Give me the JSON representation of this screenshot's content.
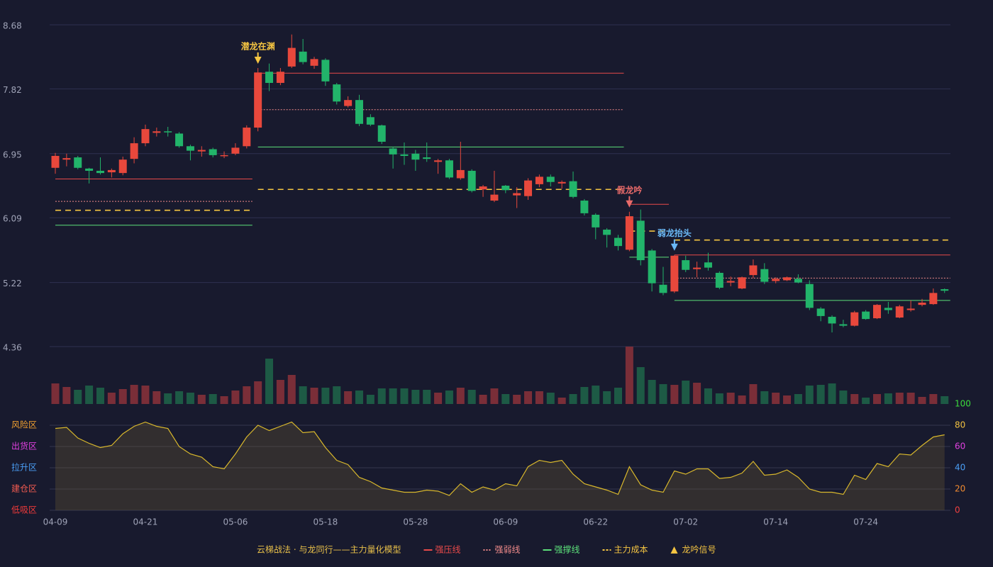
{
  "chart_data": [
    {
      "type": "candlestick",
      "ylim": [
        4.36,
        8.68
      ],
      "yticks": [
        4.36,
        5.22,
        6.09,
        6.95,
        7.82,
        8.68
      ],
      "grid": true,
      "up_color": "#e8483c",
      "down_color": "#22b46a",
      "open": [
        6.76,
        6.87,
        6.9,
        6.75,
        6.72,
        6.7,
        6.69,
        6.88,
        7.09,
        7.23,
        7.25,
        7.22,
        7.05,
        6.98,
        7.01,
        6.92,
        6.95,
        7.05,
        7.3,
        8.05,
        7.9,
        8.12,
        8.32,
        8.13,
        8.21,
        7.88,
        7.59,
        7.67,
        7.44,
        7.33,
        7.02,
        6.94,
        6.95,
        6.9,
        6.84,
        6.86,
        6.62,
        6.72,
        6.47,
        6.32,
        6.52,
        6.39,
        6.38,
        6.54,
        6.64,
        6.55,
        6.58,
        6.32,
        6.13,
        5.93,
        5.82,
        5.66,
        6.05,
        5.65,
        5.19,
        5.1,
        5.52,
        5.4,
        5.49,
        5.35,
        5.22,
        5.14,
        5.32,
        5.4,
        5.24,
        5.25,
        5.27,
        5.2,
        4.87,
        4.76,
        4.66,
        4.64,
        4.83,
        4.74,
        4.88,
        4.75,
        4.85,
        4.92,
        4.93,
        5.13
      ],
      "high": [
        6.96,
        6.95,
        6.92,
        6.76,
        6.9,
        6.75,
        6.91,
        7.17,
        7.34,
        7.3,
        7.31,
        7.24,
        7.07,
        7.05,
        7.03,
        6.98,
        7.09,
        7.33,
        8.1,
        8.16,
        8.1,
        8.55,
        8.49,
        8.25,
        8.23,
        7.9,
        7.72,
        7.74,
        7.48,
        7.34,
        7.04,
        7.1,
        7.0,
        7.1,
        6.88,
        6.88,
        7.11,
        6.74,
        6.53,
        6.72,
        6.53,
        6.5,
        6.62,
        6.67,
        6.67,
        6.59,
        6.71,
        6.34,
        6.15,
        5.95,
        5.86,
        6.17,
        6.2,
        5.67,
        5.43,
        5.59,
        5.58,
        5.5,
        5.62,
        5.37,
        5.3,
        5.3,
        5.53,
        5.48,
        5.29,
        5.3,
        5.33,
        5.25,
        4.89,
        4.78,
        4.72,
        4.84,
        4.85,
        4.93,
        4.96,
        4.92,
        4.98,
        5.0,
        5.14,
        5.14
      ],
      "low": [
        6.68,
        6.78,
        6.74,
        6.55,
        6.67,
        6.63,
        6.66,
        6.82,
        7.05,
        7.18,
        7.18,
        7.03,
        6.86,
        6.91,
        6.9,
        6.89,
        6.93,
        7.02,
        7.25,
        7.79,
        7.87,
        8.1,
        8.15,
        8.09,
        7.86,
        7.61,
        7.57,
        7.32,
        7.32,
        7.08,
        6.75,
        6.8,
        6.72,
        6.84,
        6.68,
        6.61,
        6.6,
        6.43,
        6.37,
        6.3,
        6.42,
        6.22,
        6.33,
        6.5,
        6.51,
        6.48,
        6.35,
        6.12,
        5.8,
        5.69,
        5.65,
        5.64,
        5.45,
        5.1,
        5.05,
        5.08,
        5.36,
        5.29,
        5.38,
        5.13,
        5.17,
        5.13,
        5.28,
        5.2,
        5.21,
        5.24,
        5.21,
        4.85,
        4.7,
        4.55,
        4.62,
        4.63,
        4.72,
        4.73,
        4.8,
        4.74,
        4.83,
        4.9,
        4.92,
        5.08
      ],
      "close": [
        6.92,
        6.89,
        6.76,
        6.72,
        6.69,
        6.73,
        6.87,
        7.09,
        7.28,
        7.25,
        7.24,
        7.05,
        6.99,
        7.0,
        6.93,
        6.93,
        7.03,
        7.3,
        8.04,
        7.9,
        8.05,
        8.37,
        8.18,
        8.22,
        7.92,
        7.65,
        7.67,
        7.35,
        7.34,
        7.11,
        6.94,
        6.92,
        6.87,
        6.88,
        6.86,
        6.63,
        6.73,
        6.45,
        6.51,
        6.4,
        6.46,
        6.42,
        6.59,
        6.64,
        6.57,
        6.57,
        6.37,
        6.15,
        5.96,
        5.86,
        5.71,
        6.11,
        5.52,
        5.21,
        5.08,
        5.58,
        5.39,
        5.42,
        5.42,
        5.15,
        5.24,
        5.29,
        5.45,
        5.23,
        5.27,
        5.29,
        5.22,
        4.88,
        4.77,
        4.67,
        4.64,
        4.82,
        4.73,
        4.92,
        4.85,
        4.9,
        4.87,
        4.95,
        5.08,
        5.11
      ],
      "levels": [
        {
          "from": 0,
          "to": 17,
          "resistance": 6.61,
          "pivot": 6.31,
          "cost": 6.19,
          "support": 5.99
        },
        {
          "from": 18,
          "to": 50,
          "resistance": 8.03,
          "pivot": 7.54,
          "cost": 6.47,
          "support": 7.04
        },
        {
          "from": 51,
          "to": 54,
          "resistance": 6.27,
          "cost": 5.91,
          "support": 5.56
        },
        {
          "from": 55,
          "to": 79,
          "resistance": 5.59,
          "pivot": 5.28,
          "cost": 5.79,
          "support": 4.98
        }
      ],
      "signals": [
        {
          "index": 18,
          "label": "潜龙在渊",
          "color": "#f5c542"
        },
        {
          "index": 51,
          "label": "假龙吟",
          "color": "#e86a6a"
        },
        {
          "index": 55,
          "label": "弱龙抬头",
          "color": "#6ab8f5"
        }
      ],
      "legend": {
        "title": "云梯战法 · 与龙同行——主力量化模型",
        "title_color": "#e8c04a",
        "items": [
          {
            "key": "resistance",
            "name": "强压线",
            "color": "#e84a4a"
          },
          {
            "key": "pivot",
            "name": "强弱线",
            "color": "#f08a8a"
          },
          {
            "key": "support",
            "name": "强撑线",
            "color": "#5ce07a"
          },
          {
            "key": "cost",
            "name": "主力成本",
            "color": "#f5c542"
          },
          {
            "key": "signal",
            "name": "龙吟信号",
            "color": "#f5c542"
          }
        ]
      }
    },
    {
      "type": "bar",
      "up_color": "#7a2e38",
      "down_color": "#1d5a45",
      "values": [
        29,
        24,
        20,
        26,
        23,
        16,
        21,
        27,
        26,
        18,
        15,
        18,
        16,
        13,
        14,
        11,
        19,
        25,
        32,
        64,
        34,
        41,
        25,
        23,
        23,
        25,
        18,
        19,
        13,
        22,
        22,
        22,
        20,
        20,
        16,
        19,
        23,
        20,
        13,
        22,
        14,
        13,
        18,
        18,
        16,
        9,
        14,
        24,
        26,
        18,
        23,
        81,
        52,
        34,
        28,
        27,
        33,
        30,
        22,
        15,
        16,
        12,
        28,
        18,
        16,
        12,
        14,
        26,
        27,
        29,
        19,
        14,
        9,
        14,
        15,
        16,
        16,
        10,
        14,
        11
      ]
    },
    {
      "type": "area",
      "color": "#d9b82c",
      "ylim": [
        0,
        100
      ],
      "yticks": [
        0,
        20,
        40,
        60,
        80,
        100
      ],
      "ytick_colors": [
        "#f04040",
        "#f08a30",
        "#4a9ef5",
        "#e040e0",
        "#f0c040",
        "#3cdc3c"
      ],
      "zones": [
        {
          "value": 80,
          "label": "风险区",
          "color": "#f0a030"
        },
        {
          "value": 60,
          "label": "出货区",
          "color": "#e040e0"
        },
        {
          "value": 40,
          "label": "拉升区",
          "color": "#4a9ef5"
        },
        {
          "value": 20,
          "label": "建仓区",
          "color": "#f05a50"
        },
        {
          "value": 0,
          "label": "低吸区",
          "color": "#f03a3a"
        }
      ],
      "categories": [
        "04-09",
        null,
        null,
        null,
        null,
        null,
        null,
        null,
        "04-21",
        null,
        null,
        null,
        null,
        null,
        null,
        null,
        "05-06",
        null,
        null,
        null,
        null,
        null,
        null,
        null,
        "05-18",
        null,
        null,
        null,
        null,
        null,
        null,
        null,
        "05-28",
        null,
        null,
        null,
        null,
        null,
        null,
        null,
        "06-09",
        null,
        null,
        null,
        null,
        null,
        null,
        null,
        "06-22",
        null,
        null,
        null,
        null,
        null,
        null,
        null,
        "07-02",
        null,
        null,
        null,
        null,
        null,
        null,
        null,
        "07-14",
        null,
        null,
        null,
        null,
        null,
        null,
        null,
        "07-24",
        null,
        null,
        null,
        null,
        null,
        null,
        null
      ],
      "values": [
        77,
        78,
        68,
        63,
        59,
        61,
        72,
        79,
        83,
        79,
        77,
        60,
        53,
        50,
        41,
        39,
        53,
        69,
        80,
        75,
        79,
        83,
        73,
        74,
        59,
        47,
        43,
        31,
        27,
        21,
        19,
        17,
        17,
        19,
        18,
        14,
        25,
        17,
        22,
        19,
        25,
        23,
        41,
        47,
        45,
        47,
        34,
        25,
        22,
        19,
        15,
        41,
        24,
        19,
        17,
        37,
        34,
        39,
        39,
        30,
        31,
        35,
        46,
        33,
        34,
        38,
        31,
        20,
        17,
        17,
        15,
        33,
        29,
        44,
        41,
        53,
        52,
        61,
        69,
        71
      ]
    }
  ]
}
